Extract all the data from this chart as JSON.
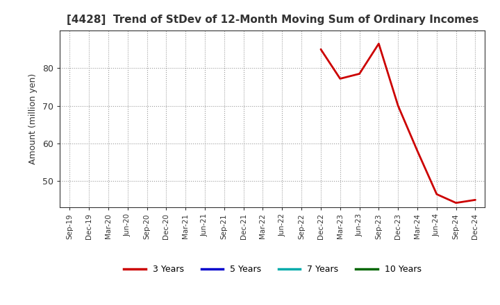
{
  "title": "[4428]  Trend of StDev of 12-Month Moving Sum of Ordinary Incomes",
  "ylabel": "Amount (million yen)",
  "background_color": "#ffffff",
  "plot_bg_color": "#ffffff",
  "grid_color": "#999999",
  "x_labels": [
    "Sep-19",
    "Dec-19",
    "Mar-20",
    "Jun-20",
    "Sep-20",
    "Dec-20",
    "Mar-21",
    "Jun-21",
    "Sep-21",
    "Dec-21",
    "Mar-22",
    "Jun-22",
    "Sep-22",
    "Dec-22",
    "Mar-23",
    "Jun-23",
    "Sep-23",
    "Dec-23",
    "Mar-24",
    "Jun-24",
    "Sep-24",
    "Dec-24"
  ],
  "series": {
    "3 Years": {
      "color": "#cc0000",
      "data_x": [
        13,
        14,
        15,
        16,
        17,
        18,
        19,
        20,
        21
      ],
      "data_y": [
        85.0,
        77.2,
        78.5,
        86.5,
        70.0,
        58.0,
        46.5,
        44.2,
        45.0
      ]
    },
    "5 Years": {
      "color": "#0000cc",
      "data_x": [],
      "data_y": []
    },
    "7 Years": {
      "color": "#00aaaa",
      "data_x": [],
      "data_y": []
    },
    "10 Years": {
      "color": "#006600",
      "data_x": [],
      "data_y": []
    }
  },
  "ylim": [
    43,
    90
  ],
  "yticks": [
    50,
    60,
    70,
    80
  ],
  "legend_entries": [
    "3 Years",
    "5 Years",
    "7 Years",
    "10 Years"
  ],
  "legend_colors": [
    "#cc0000",
    "#0000cc",
    "#00aaaa",
    "#006600"
  ]
}
